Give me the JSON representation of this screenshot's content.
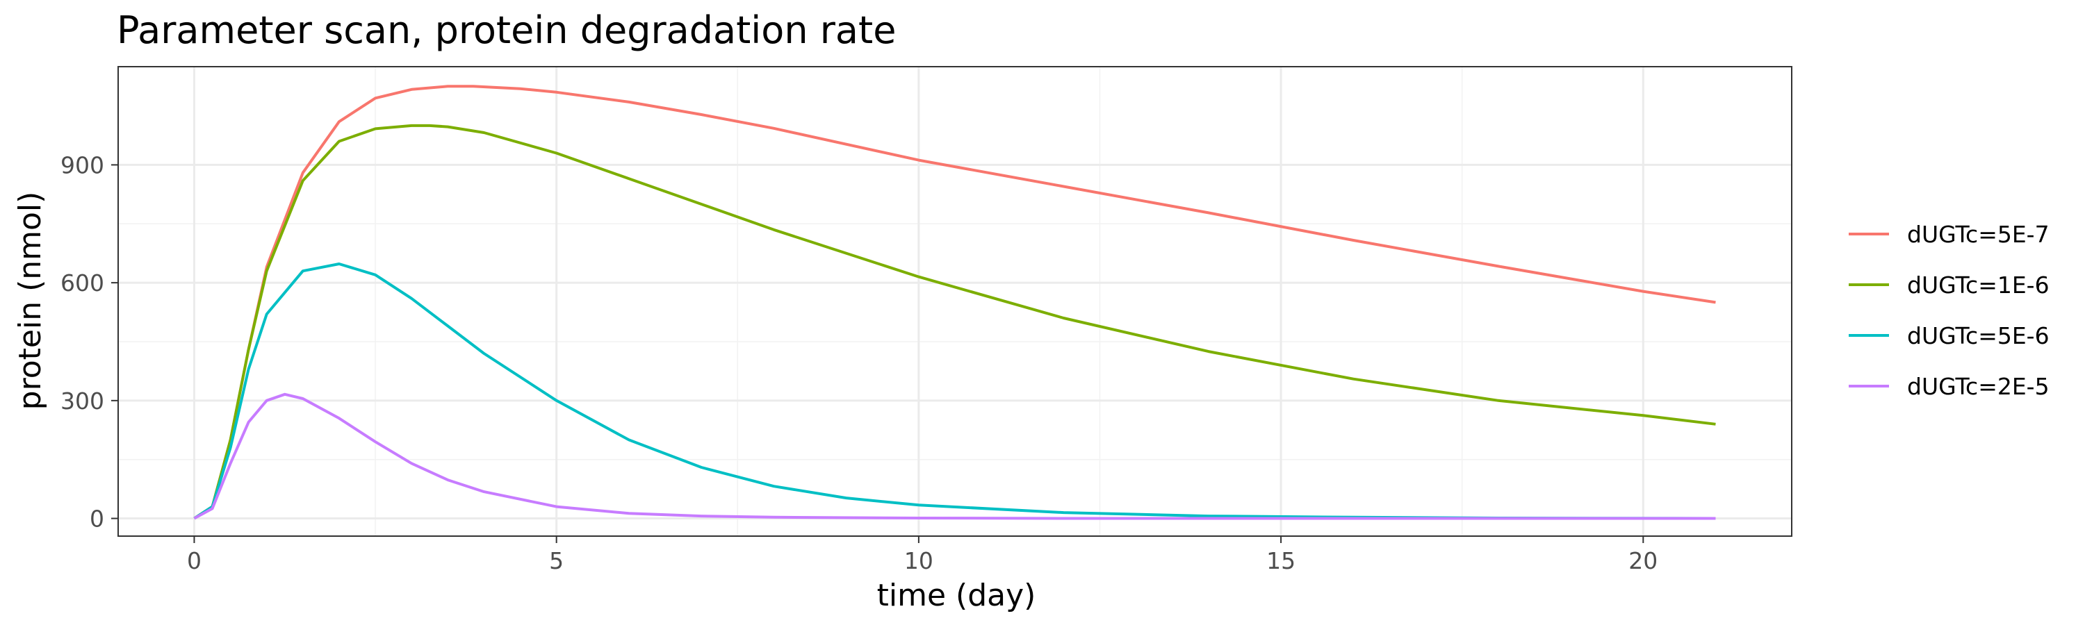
{
  "chart_data": {
    "type": "line",
    "title": "Parameter scan, protein degradation rate",
    "xlabel": "time (day)",
    "ylabel": "protein (nmol)",
    "xlim": [
      -1.05,
      22.05
    ],
    "ylim": [
      -45,
      1150
    ],
    "xticks": [
      0,
      5,
      10,
      15,
      20
    ],
    "yticks": [
      0,
      300,
      600,
      900
    ],
    "grid": true,
    "legend_position": "right",
    "series": [
      {
        "name": "dUGTc=5E-7",
        "color": "#F8766D",
        "x": [
          0,
          0.25,
          0.5,
          0.75,
          1,
          1.5,
          2,
          2.5,
          3,
          3.5,
          3.85,
          4.5,
          5,
          6,
          7,
          8,
          10,
          12,
          14,
          16,
          18,
          20,
          21
        ],
        "y": [
          0,
          30,
          200,
          430,
          640,
          880,
          1010,
          1070,
          1092,
          1100,
          1100,
          1094,
          1085,
          1060,
          1028,
          993,
          912,
          845,
          778,
          708,
          642,
          578,
          550
        ]
      },
      {
        "name": "dUGTc=1E-6",
        "color": "#7CAE00",
        "x": [
          0,
          0.25,
          0.5,
          0.75,
          1,
          1.5,
          2,
          2.5,
          3,
          3.25,
          3.5,
          4,
          5,
          6,
          7,
          8,
          10,
          12,
          14,
          16,
          18,
          20,
          21
        ],
        "y": [
          0,
          30,
          200,
          430,
          630,
          860,
          960,
          992,
          1000,
          1000,
          997,
          982,
          930,
          865,
          800,
          735,
          615,
          510,
          425,
          355,
          300,
          262,
          240
        ]
      },
      {
        "name": "dUGTc=5E-6",
        "color": "#00BFC4",
        "x": [
          0,
          0.25,
          0.5,
          0.75,
          1,
          1.5,
          2,
          2.5,
          3,
          3.5,
          4,
          5,
          6,
          7,
          8,
          9,
          10,
          12,
          14,
          16,
          18,
          21
        ],
        "y": [
          0,
          30,
          180,
          380,
          520,
          630,
          648,
          620,
          560,
          490,
          420,
          300,
          200,
          130,
          82,
          52,
          34,
          15,
          6,
          3,
          1,
          0
        ]
      },
      {
        "name": "dUGTc=2E-5",
        "color": "#C77CFF",
        "x": [
          0,
          0.25,
          0.5,
          0.75,
          1,
          1.25,
          1.5,
          2,
          2.5,
          3,
          3.5,
          4,
          5,
          6,
          7,
          8,
          10,
          12,
          15,
          21
        ],
        "y": [
          0,
          25,
          140,
          245,
          300,
          316,
          305,
          255,
          195,
          140,
          98,
          68,
          30,
          13,
          6,
          3,
          1,
          0,
          0,
          0
        ]
      }
    ]
  }
}
